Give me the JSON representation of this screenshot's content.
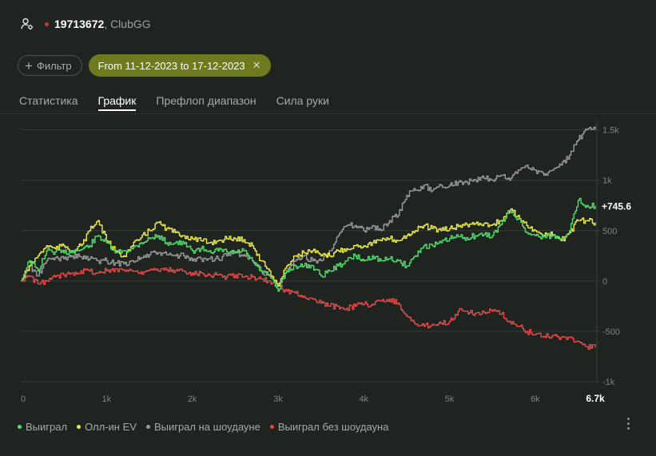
{
  "header": {
    "player_id": "19713672",
    "room": ", ClubGG",
    "user_icon": "user-settings-icon",
    "status_color": "#c0393b"
  },
  "filters": {
    "filter_label": "Фильтр",
    "date_range": "From 11-12-2023 to 17-12-2023",
    "chip_color": "#6f7a1e"
  },
  "tabs": [
    {
      "label": "Статистика",
      "active": false
    },
    {
      "label": "График",
      "active": true
    },
    {
      "label": "Префлоп диапазон",
      "active": false
    },
    {
      "label": "Сила руки",
      "active": false
    }
  ],
  "legend": [
    {
      "label": "Выиграл",
      "color": "#4fe06b"
    },
    {
      "label": "Олл-ин EV",
      "color": "#ecec48"
    },
    {
      "label": "Выиграл на шоудауне",
      "color": "#9a9a9a"
    },
    {
      "label": "Выиграл без шоудауна",
      "color": "#e44a48"
    }
  ],
  "chart_data": {
    "type": "line",
    "xlim": [
      0,
      6700
    ],
    "ylim": [
      -1000,
      1600
    ],
    "x_ticks": [
      0,
      1000,
      2000,
      3000,
      4000,
      5000,
      6000,
      6700
    ],
    "x_tick_labels": [
      "0",
      "1k",
      "2k",
      "3k",
      "4k",
      "5k",
      "6k",
      "6.7k"
    ],
    "y_ticks": [
      1500,
      1000,
      500,
      0,
      -500,
      -1000
    ],
    "y_tick_labels": [
      "1.5k",
      "1k",
      "500",
      "0",
      "-500",
      "-1k"
    ],
    "end_label": "+745.6",
    "grid": true,
    "legend_position": "bottom-left",
    "series": [
      {
        "name": "Выиграл",
        "color": "#4fe06b",
        "x": [
          0,
          100,
          200,
          300,
          400,
          500,
          600,
          700,
          800,
          900,
          1000,
          1100,
          1200,
          1300,
          1400,
          1500,
          1600,
          1700,
          1800,
          1900,
          2000,
          2100,
          2200,
          2300,
          2400,
          2500,
          2600,
          2700,
          2800,
          2900,
          3000,
          3100,
          3200,
          3300,
          3400,
          3500,
          3600,
          3700,
          3800,
          3900,
          4000,
          4100,
          4200,
          4300,
          4400,
          4500,
          4600,
          4700,
          4800,
          4900,
          5000,
          5100,
          5200,
          5300,
          5400,
          5500,
          5600,
          5700,
          5800,
          5900,
          6000,
          6100,
          6200,
          6300,
          6400,
          6500,
          6600,
          6700
        ],
        "y": [
          0,
          200,
          100,
          300,
          290,
          280,
          300,
          310,
          350,
          450,
          380,
          280,
          300,
          320,
          380,
          420,
          450,
          380,
          380,
          370,
          300,
          320,
          300,
          300,
          290,
          280,
          300,
          200,
          100,
          50,
          -100,
          100,
          150,
          150,
          150,
          50,
          100,
          150,
          200,
          250,
          200,
          250,
          200,
          220,
          200,
          150,
          250,
          350,
          350,
          380,
          420,
          440,
          430,
          450,
          460,
          450,
          560,
          700,
          620,
          480,
          450,
          440,
          450,
          420,
          500,
          800,
          750,
          746
        ]
      },
      {
        "name": "Олл-ин EV",
        "color": "#ecec48",
        "x": [
          0,
          100,
          200,
          300,
          400,
          500,
          600,
          700,
          800,
          900,
          1000,
          1100,
          1200,
          1300,
          1400,
          1500,
          1600,
          1700,
          1800,
          1900,
          2000,
          2100,
          2200,
          2300,
          2400,
          2500,
          2600,
          2700,
          2800,
          2900,
          3000,
          3100,
          3200,
          3300,
          3400,
          3500,
          3600,
          3700,
          3800,
          3900,
          4000,
          4100,
          4200,
          4300,
          4400,
          4500,
          4600,
          4700,
          4800,
          4900,
          5000,
          5100,
          5200,
          5300,
          5400,
          5500,
          5600,
          5700,
          5800,
          5900,
          6000,
          6100,
          6200,
          6300,
          6400,
          6500,
          6600,
          6700
        ],
        "y": [
          0,
          150,
          250,
          350,
          320,
          350,
          300,
          350,
          500,
          600,
          400,
          300,
          250,
          350,
          430,
          500,
          580,
          520,
          480,
          450,
          420,
          400,
          380,
          400,
          420,
          420,
          410,
          350,
          200,
          100,
          -50,
          150,
          250,
          280,
          300,
          250,
          250,
          300,
          320,
          350,
          350,
          380,
          400,
          420,
          400,
          450,
          500,
          550,
          520,
          500,
          520,
          540,
          560,
          570,
          570,
          560,
          600,
          700,
          650,
          550,
          500,
          450,
          460,
          400,
          480,
          600,
          600,
          580
        ]
      },
      {
        "name": "Выиграл на шоудауне",
        "color": "#9a9a9a",
        "x": [
          0,
          100,
          200,
          300,
          400,
          500,
          600,
          700,
          800,
          900,
          1000,
          1100,
          1200,
          1300,
          1400,
          1500,
          1600,
          1700,
          1800,
          1900,
          2000,
          2100,
          2200,
          2300,
          2400,
          2500,
          2600,
          2700,
          2800,
          2900,
          3000,
          3100,
          3200,
          3300,
          3400,
          3500,
          3600,
          3700,
          3800,
          3900,
          4000,
          4100,
          4200,
          4300,
          4400,
          4500,
          4600,
          4700,
          4800,
          4900,
          5000,
          5100,
          5200,
          5300,
          5400,
          5500,
          5600,
          5700,
          5800,
          5900,
          6000,
          6100,
          6200,
          6300,
          6400,
          6500,
          6600,
          6700
        ],
        "y": [
          0,
          150,
          50,
          200,
          230,
          220,
          250,
          240,
          220,
          200,
          200,
          180,
          170,
          200,
          230,
          260,
          280,
          260,
          250,
          250,
          200,
          220,
          220,
          220,
          250,
          280,
          260,
          200,
          100,
          50,
          -50,
          100,
          200,
          250,
          200,
          200,
          300,
          450,
          550,
          550,
          500,
          550,
          500,
          600,
          650,
          850,
          900,
          950,
          900,
          950,
          950,
          980,
          980,
          1000,
          1020,
          1000,
          1050,
          1000,
          1100,
          1150,
          1100,
          1050,
          1100,
          1150,
          1250,
          1400,
          1500,
          1500
        ]
      },
      {
        "name": "Выиграл без шоудауна",
        "color": "#e44a48",
        "x": [
          0,
          100,
          200,
          300,
          400,
          500,
          600,
          700,
          800,
          900,
          1000,
          1100,
          1200,
          1300,
          1400,
          1500,
          1600,
          1700,
          1800,
          1900,
          2000,
          2100,
          2200,
          2300,
          2400,
          2500,
          2600,
          2700,
          2800,
          2900,
          3000,
          3100,
          3200,
          3300,
          3400,
          3500,
          3600,
          3700,
          3800,
          3900,
          4000,
          4100,
          4200,
          4300,
          4400,
          4500,
          4600,
          4700,
          4800,
          4900,
          5000,
          5100,
          5200,
          5300,
          5400,
          5500,
          5600,
          5700,
          5800,
          5900,
          6000,
          6100,
          6200,
          6300,
          6400,
          6500,
          6600,
          6700
        ],
        "y": [
          0,
          50,
          -30,
          0,
          40,
          60,
          80,
          100,
          100,
          80,
          100,
          120,
          110,
          100,
          90,
          110,
          100,
          110,
          100,
          100,
          80,
          80,
          60,
          60,
          40,
          60,
          40,
          40,
          20,
          0,
          -50,
          -100,
          -120,
          -150,
          -180,
          -220,
          -250,
          -250,
          -270,
          -250,
          -230,
          -230,
          -200,
          -180,
          -220,
          -350,
          -430,
          -450,
          -430,
          -420,
          -400,
          -300,
          -300,
          -320,
          -310,
          -300,
          -330,
          -400,
          -450,
          -500,
          -530,
          -550,
          -540,
          -560,
          -560,
          -600,
          -650,
          -660
        ]
      }
    ]
  }
}
